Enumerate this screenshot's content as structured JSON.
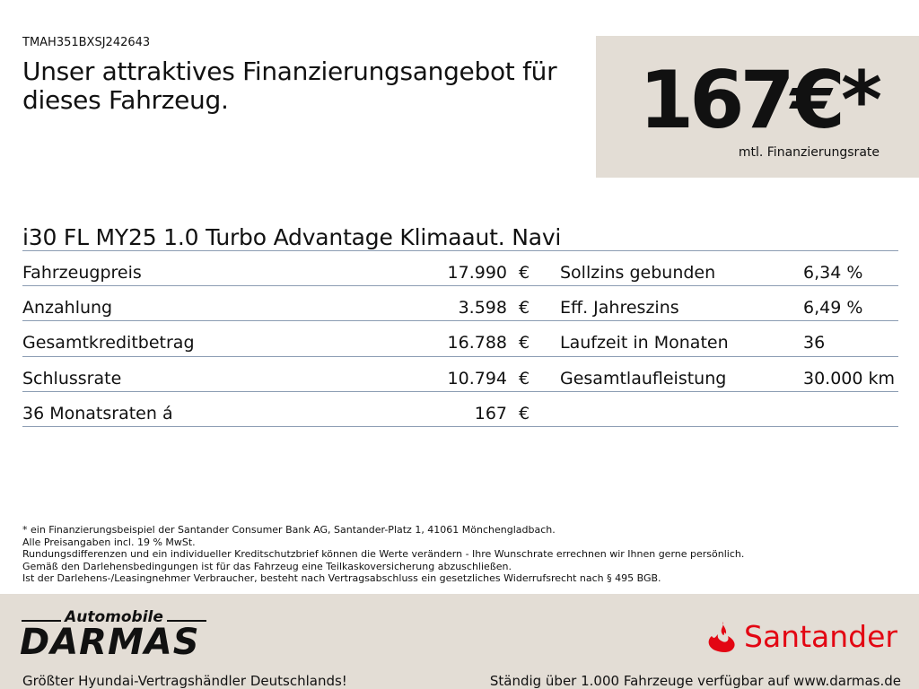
{
  "vin": "TMAH351BXSJ242643",
  "headline": "Unser attraktives Finanzierungsangebot für dieses Fahrzeug.",
  "price": {
    "value": "167€*",
    "label": "mtl. Finanzierungsrate"
  },
  "model": "i30 FL MY25 1.0 Turbo Advantage Klimaaut. Navi",
  "left_rows": [
    {
      "label": "Fahrzeugpreis",
      "value": "17.990",
      "unit": "€"
    },
    {
      "label": "Anzahlung",
      "value": "3.598",
      "unit": "€"
    },
    {
      "label": "Gesamtkreditbetrag",
      "value": "16.788",
      "unit": "€"
    },
    {
      "label": "Schlussrate",
      "value": "10.794",
      "unit": "€"
    },
    {
      "label": "36 Monatsraten á",
      "value": "167",
      "unit": "€"
    }
  ],
  "right_rows": [
    {
      "label": "Sollzins gebunden",
      "value": "6,34 %"
    },
    {
      "label": "Eff. Jahreszins",
      "value": "6,49 %"
    },
    {
      "label": "Laufzeit in Monaten",
      "value": "36"
    },
    {
      "label": "Gesamtlaufleistung",
      "value": "30.000 km"
    }
  ],
  "disclaimer": [
    "* ein Finanzierungsbeispiel der Santander Consumer Bank AG, Santander-Platz 1, 41061 Mönchengladbach.",
    "Alle Preisangaben incl. 19 % MwSt.",
    "Rundungsdifferenzen und ein individueller Kreditschutzbrief können die Werte verändern - Ihre Wunschrate errechnen wir Ihnen gerne persönlich.",
    "Gemäß den Darlehensbedingungen ist für das Fahrzeug eine Teilkaskoversicherung abzuschließen.",
    "Ist der Darlehens-/Leasingnehmer Verbraucher, besteht nach Vertragsabschluss ein gesetzliches Widerrufsrecht nach § 495 BGB."
  ],
  "footer": {
    "dealer_logo": {
      "top": "Automobile",
      "main": "DARMAS"
    },
    "bank_logo": "Santander",
    "left_text": "Größter Hyundai-Vertragshändler Deutschlands!",
    "right_text": "Ständig über 1.000 Fahrzeuge verfügbar auf www.darmas.de"
  },
  "colors": {
    "box_bg": "#e3ddd5",
    "santander_red": "#e30613",
    "divider": "#8c9db3"
  }
}
